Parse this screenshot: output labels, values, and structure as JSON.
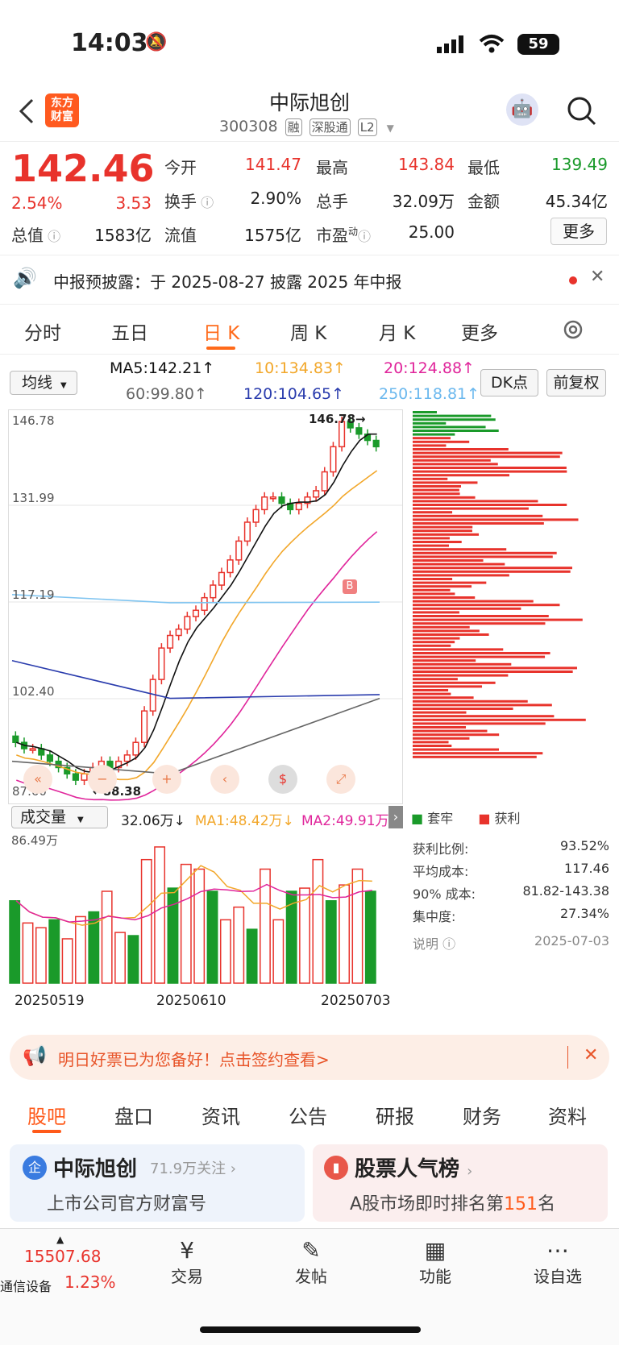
{
  "status": {
    "time": "14:03",
    "battery": "59"
  },
  "header": {
    "logo_line1": "东方",
    "logo_line2": "财富",
    "title": "中际旭创",
    "code": "300308",
    "tags": [
      "融",
      "深股通",
      "L2"
    ]
  },
  "quote": {
    "price": "142.46",
    "change_pct": "2.54%",
    "change_amt": "3.53",
    "labels": {
      "open": "今开",
      "high": "最高",
      "low": "最低",
      "turnover": "换手",
      "volume": "总手",
      "amount": "金额",
      "mktcap": "总值",
      "float": "流值",
      "pe": "市盈",
      "pe_sup": "动"
    },
    "values": {
      "open": "141.47",
      "high": "143.84",
      "low": "139.49",
      "turnover": "2.90%",
      "volume": "32.09万",
      "amount": "45.34亿",
      "mktcap": "1583亿",
      "float": "1575亿",
      "pe": "25.00"
    },
    "more": "更多"
  },
  "notice": {
    "text": "中报预披露：于 2025-08-27 披露 2025 年中报"
  },
  "tabs": [
    "分时",
    "五日",
    "日 K",
    "周 K",
    "月 K",
    "更多"
  ],
  "ma": {
    "selector": "均线",
    "ma5": "MA5:142.21↑",
    "ma10": "10:134.83↑",
    "ma20": "20:124.88↑",
    "ma60": "60:99.80↑",
    "ma120": "120:104.65↑",
    "ma250": "250:118.81↑",
    "dk": "DK点",
    "fq": "前复权"
  },
  "colors": {
    "up": "#e8332c",
    "down": "#1a9a2a",
    "ma5": "#111111",
    "ma10": "#f2a72a",
    "ma20": "#e0259b",
    "ma60": "#666666",
    "ma120": "#2a3cad",
    "ma250": "#7fc4f0"
  },
  "kline": {
    "y_labels": [
      "146.78",
      "131.99",
      "117.19",
      "102.40",
      "87.60"
    ],
    "max_label": "146.78",
    "min_label": "88.38",
    "marker": "B"
  },
  "volume": {
    "selector": "成交量",
    "value": "32.06万↓",
    "ma1": "MA1:48.42万↓",
    "ma2": "MA2:49.91万",
    "max_label": "86.49万",
    "dates": [
      "20250519",
      "20250610",
      "20250703"
    ]
  },
  "chips": {
    "legend_trapped": "套牢",
    "legend_profit": "获利",
    "stats": [
      {
        "label": "获利比例:",
        "value": "93.52%"
      },
      {
        "label": "平均成本:",
        "value": "117.46"
      },
      {
        "label": "90% 成本:",
        "value": "81.82-143.38"
      },
      {
        "label": "集中度:",
        "value": "27.34%"
      }
    ],
    "note": "说明",
    "date": "2025-07-03"
  },
  "ad": {
    "text": "明日好票已为您备好！点击签约查看>"
  },
  "bottom_tabs": [
    "股吧",
    "盘口",
    "资讯",
    "公告",
    "研报",
    "财务",
    "资料"
  ],
  "cards": [
    {
      "title": "中际旭创",
      "sub": "71.9万关注",
      "desc": "上市公司官方财富号"
    },
    {
      "title": "股票人气榜",
      "desc_pre": "A股市场即时排名第",
      "rank": "151",
      "desc_post": "名"
    }
  ],
  "nav": {
    "index_value": "15507.68",
    "index_name": "通信设备",
    "index_pct": "1.23%",
    "items": [
      "交易",
      "发帖",
      "功能",
      "设自选"
    ]
  }
}
